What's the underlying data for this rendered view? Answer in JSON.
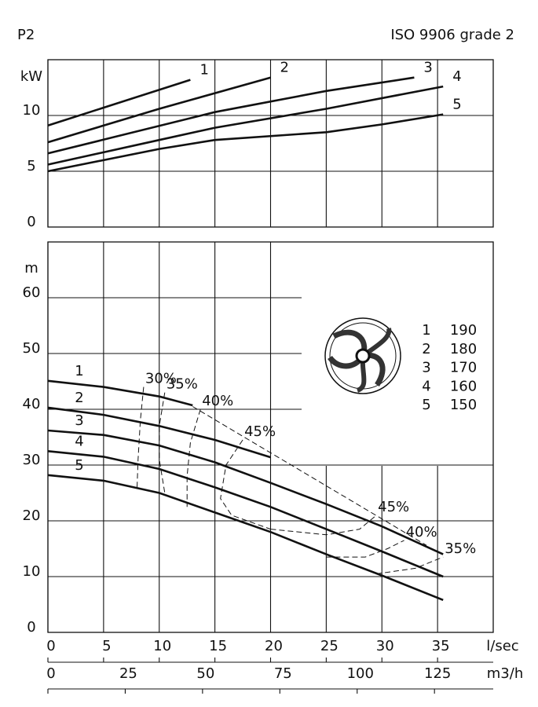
{
  "header": {
    "left": "P2",
    "right": "ISO 9906 grade 2"
  },
  "chart_data": [
    {
      "type": "line",
      "y_label": "kW",
      "xlim": [
        0,
        40
      ],
      "ylim": [
        0,
        15
      ],
      "xticks": [
        0,
        5,
        10,
        15,
        20,
        25,
        30,
        35
      ],
      "yticks": [
        0,
        5,
        10
      ],
      "series": [
        {
          "name": "1",
          "x": [
            0,
            12.8
          ],
          "y": [
            9.1,
            13.2
          ]
        },
        {
          "name": "2",
          "x": [
            0,
            10,
            20
          ],
          "y": [
            7.6,
            10.6,
            13.4
          ]
        },
        {
          "name": "3",
          "x": [
            0,
            15,
            25,
            32.9
          ],
          "y": [
            6.6,
            10.3,
            12.2,
            13.4
          ]
        },
        {
          "name": "4",
          "x": [
            0,
            10,
            15,
            25,
            35.5
          ],
          "y": [
            5.6,
            7.8,
            8.9,
            10.6,
            12.6
          ]
        },
        {
          "name": "5",
          "x": [
            0,
            10,
            15,
            25,
            30,
            35.5
          ],
          "y": [
            5,
            7,
            7.8,
            8.5,
            9.2,
            10.1
          ]
        }
      ]
    },
    {
      "type": "line",
      "y_label": "m",
      "x_label": "l/sec",
      "x2_label": "m3/h",
      "xlim": [
        0,
        40
      ],
      "ylim": [
        0,
        70
      ],
      "x2lim": [
        0,
        144
      ],
      "xticks": [
        0,
        5,
        10,
        15,
        20,
        25,
        30,
        35
      ],
      "yticks": [
        0,
        10,
        20,
        30,
        40,
        50,
        60
      ],
      "x2ticks": [
        0,
        25,
        50,
        75,
        100,
        125
      ],
      "series": [
        {
          "name": "1",
          "diameter": 190,
          "x": [
            0,
            5,
            10,
            13
          ],
          "y": [
            45.1,
            44,
            42.3,
            40.7
          ]
        },
        {
          "name": "2",
          "diameter": 180,
          "x": [
            0,
            5,
            10,
            15,
            20
          ],
          "y": [
            40.3,
            39,
            37,
            34.5,
            31.4
          ]
        },
        {
          "name": "3",
          "diameter": 170,
          "x": [
            0,
            5,
            10,
            15,
            20,
            25,
            30,
            35.5
          ],
          "y": [
            36.2,
            35.4,
            33.5,
            30.5,
            26.8,
            23,
            19,
            14
          ]
        },
        {
          "name": "4",
          "diameter": 160,
          "x": [
            0,
            5,
            10,
            15,
            20,
            25,
            30,
            35.5
          ],
          "y": [
            32.5,
            31.5,
            29.3,
            26,
            22.5,
            18.5,
            14.5,
            10
          ]
        },
        {
          "name": "5",
          "diameter": 150,
          "x": [
            0,
            5,
            10,
            15,
            20,
            25,
            30,
            35.5
          ],
          "y": [
            28.2,
            27.2,
            25,
            21.5,
            18,
            14,
            10.2,
            5.8
          ]
        }
      ],
      "efficiency": [
        {
          "label": "30%",
          "x": [
            8.6,
            8.3,
            8.1,
            8
          ],
          "y": [
            44,
            38,
            31,
            25.5
          ]
        },
        {
          "label": "35%",
          "x": [
            10.5,
            10,
            10,
            10.5,
            null,
            29.5,
            33,
            35.5
          ],
          "y": [
            43,
            37,
            31,
            25,
            null,
            10.5,
            11.5,
            13.5
          ]
        },
        {
          "label": "40%",
          "x": [
            13.7,
            12.8,
            12.5,
            12.5,
            null,
            25,
            28.5,
            30.5,
            32
          ],
          "y": [
            40,
            34,
            28,
            22.5,
            null,
            13.5,
            13.5,
            15,
            16.5
          ]
        },
        {
          "label": "45%",
          "x": [
            17.5,
            16,
            15.5,
            16.5,
            20,
            null,
            20,
            25,
            28,
            29.5
          ],
          "y": [
            34.5,
            30,
            24,
            21,
            18.5,
            null,
            18.5,
            17.5,
            18.5,
            21
          ]
        }
      ],
      "envelope": {
        "x": [
          13,
          34
        ],
        "y": [
          40.5,
          15.6
        ]
      }
    }
  ]
}
